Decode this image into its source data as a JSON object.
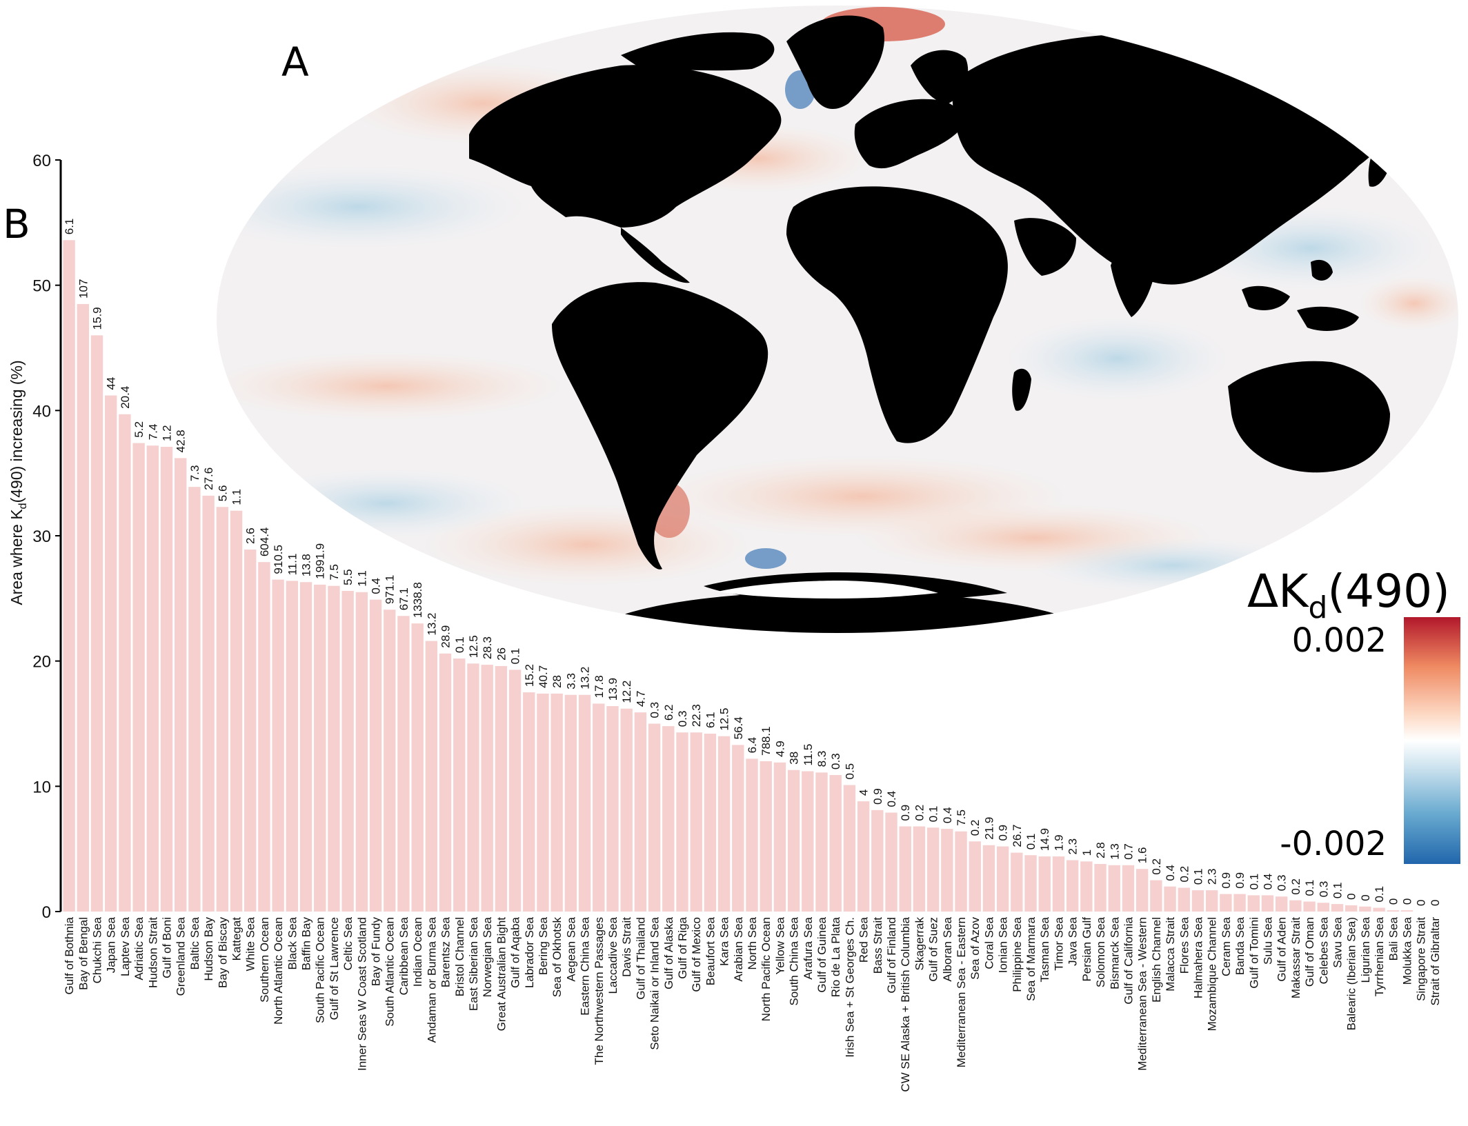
{
  "panel_labels": {
    "map": "A",
    "chart": "B"
  },
  "map": {
    "land_color": "#000000",
    "ice_color": "#ffffff",
    "colorbar": {
      "title_prefix": "ΔK",
      "title_sub": "d",
      "title_suffix": "(490)",
      "max_label": "0.002",
      "min_label": "-0.002",
      "colors": [
        "#b2182b",
        "#ef8a62",
        "#fddbc7",
        "#ffffff",
        "#d1e5f0",
        "#67a9cf",
        "#2166ac"
      ]
    }
  },
  "chart_data": {
    "type": "bar",
    "ylabel_prefix": "Area where K",
    "ylabel_sub": "d",
    "ylabel_suffix": "(490) increasing (%)",
    "ylim": [
      0,
      60
    ],
    "yticks": [
      "0",
      "10",
      "20",
      "30",
      "40",
      "50",
      "60"
    ],
    "bar_color": "#f6cfcf",
    "categories": [
      "Gulf of Bothnia",
      "Bay of Bengal",
      "Chukchi Sea",
      "Japan Sea",
      "Laptev Sea",
      "Adriatic Sea",
      "Hudson Strait",
      "Gulf of Boni",
      "Greenland Sea",
      "Baltic Sea",
      "Hudson Bay",
      "Bay of Biscay",
      "Kattegat",
      "White Sea",
      "Southern Ocean",
      "North Atlantic Ocean",
      "Black Sea",
      "Baffin Bay",
      "South Pacific Ocean",
      "Gulf of St Lawrence",
      "Celtic Sea",
      "Inner Seas W Coast Scotland",
      "Bay of Fundy",
      "South Atlantic Ocean",
      "Caribbean Sea",
      "Indian Ocean",
      "Andaman or Burma Sea",
      "Barentsz Sea",
      "Bristol Channel",
      "East Siberian Sea",
      "Norwegian Sea",
      "Great Australian Bight",
      "Gulf of Aqaba",
      "Labrador Sea",
      "Bering Sea",
      "Sea of Okhotsk",
      "Aegean Sea",
      "Eastern China Sea",
      "The Northwestern Passages",
      "Laccadive Sea",
      "Davis Strait",
      "Gulf of Thailand",
      "Seto Naikai or Inland Sea",
      "Gulf of Alaska",
      "Gulf of Riga",
      "Gulf of Mexico",
      "Beaufort Sea",
      "Kara Sea",
      "Arabian Sea",
      "North Sea",
      "North Pacific Ocean",
      "Yellow Sea",
      "South China Sea",
      "Arafura Sea",
      "Gulf of Guinea",
      "Rio de La Plata",
      "Irish Sea + St Georges Ch.",
      "Red Sea",
      "Bass Strait",
      "Gulf of Finland",
      "CW SE Alaska + British Columbia",
      "Skagerrak",
      "Gulf of Suez",
      "Alboran Sea",
      "Mediterranean Sea - Eastern",
      "Sea of Azov",
      "Coral Sea",
      "Ionian Sea",
      "Philippine Sea",
      "Sea of Marmara",
      "Tasman Sea",
      "Timor Sea",
      "Java Sea",
      "Persian Gulf",
      "Solomon Sea",
      "Bismarck Sea",
      "Gulf of California",
      "Mediterranean Sea - Western",
      "English Channel",
      "Malacca Strait",
      "Flores Sea",
      "Halmahera Sea",
      "Mozambique Channel",
      "Ceram Sea",
      "Banda Sea",
      "Gulf of Tomini",
      "Sulu Sea",
      "Gulf of Aden",
      "Makassar Strait",
      "Gulf of Oman",
      "Celebes Sea",
      "Savu Sea",
      "Balearic (Iberian Sea)",
      "Ligurian Sea",
      "Tyrrhenian Sea",
      "Bali Sea",
      "Molukka Sea",
      "Singapore Strait",
      "Strait of Gibraltar"
    ],
    "values": [
      53.6,
      48.5,
      46.0,
      41.2,
      39.7,
      37.4,
      37.2,
      37.1,
      36.2,
      33.9,
      33.2,
      32.3,
      32.0,
      28.9,
      27.9,
      26.5,
      26.4,
      26.3,
      26.1,
      26.0,
      25.6,
      25.5,
      24.9,
      24.1,
      23.6,
      23.0,
      21.6,
      20.6,
      20.2,
      19.8,
      19.7,
      19.6,
      19.3,
      17.5,
      17.4,
      17.4,
      17.3,
      17.3,
      16.6,
      16.4,
      16.2,
      15.9,
      15.0,
      14.8,
      14.3,
      14.3,
      14.2,
      14.0,
      13.3,
      12.2,
      12.0,
      11.9,
      11.3,
      11.2,
      11.1,
      10.9,
      10.1,
      8.8,
      8.1,
      7.9,
      6.8,
      6.8,
      6.7,
      6.6,
      6.4,
      5.6,
      5.3,
      5.2,
      4.7,
      4.5,
      4.4,
      4.4,
      4.1,
      4.0,
      3.8,
      3.7,
      3.7,
      3.4,
      2.5,
      2.0,
      1.9,
      1.7,
      1.7,
      1.4,
      1.4,
      1.3,
      1.3,
      1.2,
      0.9,
      0.8,
      0.7,
      0.6,
      0.5,
      0.4,
      0.3,
      0.1,
      0.1,
      0.0,
      0.0
    ],
    "value_labels": [
      "6.1",
      "107",
      "15.9",
      "44",
      "20.4",
      "5.2",
      "7.4",
      "1.2",
      "42.8",
      "7.3",
      "27.6",
      "5.6",
      "1.1",
      "2.6",
      "604.4",
      "910.5",
      "11.1",
      "13.8",
      "1991.9",
      "7.5",
      "5.5",
      "1.1",
      "0.4",
      "971.1",
      "67.1",
      "1338.8",
      "13.2",
      "28.9",
      "0.1",
      "12.5",
      "28.3",
      "26",
      "0.1",
      "15.2",
      "40.7",
      "28",
      "3.3",
      "13.2",
      "17.8",
      "13.9",
      "12.2",
      "4.7",
      "0.3",
      "6.2",
      "0.3",
      "22.3",
      "6.1",
      "12.5",
      "56.4",
      "6.4",
      "788.1",
      "4.9",
      "38",
      "11.5",
      "8.3",
      "0.3",
      "0.5",
      "4",
      "0.9",
      "0.4",
      "0.9",
      "0.2",
      "0.1",
      "0.4",
      "7.5",
      "0.2",
      "21.9",
      "0.9",
      "26.7",
      "0.1",
      "14.9",
      "1.9",
      "2.3",
      "1",
      "2.8",
      "1.3",
      "0.7",
      "1.6",
      "0.2",
      "0.4",
      "0.2",
      "0.1",
      "2.3",
      "0.9",
      "0.9",
      "0.1",
      "0.4",
      "0.3",
      "0.2",
      "0.1",
      "0.3",
      "0.1",
      "0",
      "0",
      "0.1",
      "0",
      "0",
      "0",
      "0"
    ]
  }
}
